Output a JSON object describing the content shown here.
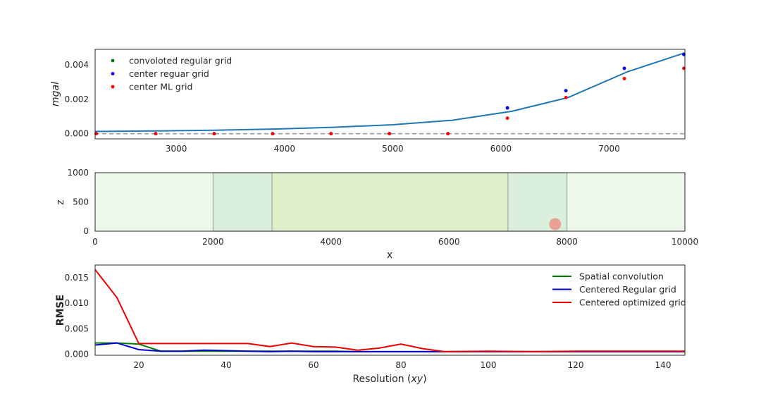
{
  "chart_data": [
    {
      "type": "line",
      "ylabel": "mgal",
      "xlim": [
        2250,
        7700
      ],
      "ylim": [
        -0.0003,
        0.0049
      ],
      "xticks": [
        3000,
        4000,
        5000,
        6000,
        7000
      ],
      "yticks": [
        "0.000",
        "0.002",
        "0.004"
      ],
      "ytick_values": [
        0,
        0.002,
        0.004
      ],
      "legend_position": "upper-left",
      "legend": [
        {
          "label": "convoloted regular grid",
          "color": "#008000"
        },
        {
          "label": "center reguar grid",
          "color": "#0000ff"
        },
        {
          "label": "center ML grid",
          "color": "#ff0000"
        }
      ],
      "reference_line": {
        "y": 0,
        "style": "dashed",
        "color": "#999999"
      },
      "true_curve": {
        "color": "#1f77b4",
        "x": [
          2250,
          2800,
          3350,
          3900,
          4450,
          5000,
          5550,
          6100,
          6620,
          7170,
          7700
        ],
        "y": [
          0.00013,
          0.00016,
          0.0002,
          0.00027,
          0.00037,
          0.00052,
          0.00078,
          0.0013,
          0.0021,
          0.0036,
          0.0047
        ]
      },
      "series": [
        {
          "name": "convoloted regular grid",
          "color": "#008000",
          "x": [
            2260,
            2810,
            3350,
            3890,
            4430,
            4970,
            5510,
            6060,
            6600,
            7140,
            7690
          ],
          "y": [
            0,
            0,
            0,
            0,
            0,
            0,
            0,
            0.0015,
            0.0025,
            0.0038,
            0.0046
          ]
        },
        {
          "name": "center reguar grid",
          "color": "#0000ff",
          "x": [
            2260,
            2810,
            3350,
            3890,
            4430,
            4970,
            5510,
            6060,
            6600,
            7140,
            7690
          ],
          "y": [
            0,
            0,
            0,
            0,
            0,
            0,
            0,
            0.0015,
            0.0025,
            0.0038,
            0.0046
          ]
        },
        {
          "name": "center ML grid",
          "color": "#ff0000",
          "x": [
            2260,
            2810,
            3350,
            3890,
            4430,
            4970,
            5510,
            6060,
            6600,
            7140,
            7690
          ],
          "y": [
            0,
            0,
            0,
            0,
            0,
            0,
            0,
            0.0009,
            0.0021,
            0.0032,
            0.0038
          ]
        }
      ]
    },
    {
      "type": "other",
      "xlabel": "x",
      "ylabel": "z",
      "xlim": [
        0,
        10000
      ],
      "ylim": [
        0,
        1000
      ],
      "xticks": [
        0,
        2000,
        4000,
        6000,
        8000,
        10000
      ],
      "yticks": [
        0,
        500,
        1000
      ],
      "regions": [
        {
          "x0": 0,
          "x1": 10000,
          "color": "#edf7ec"
        },
        {
          "x0": 2000,
          "x1": 3000,
          "color": "#dbefdd",
          "border": "#a0aaa0"
        },
        {
          "x0": 7000,
          "x1": 8000,
          "color": "#dbefdd",
          "border": "#a0aaa0"
        },
        {
          "x0": 3000,
          "x1": 7000,
          "color": "#e1f0cb",
          "border": "#a0aaa0"
        }
      ],
      "source": {
        "x": 7800,
        "z": 120,
        "color": "#e8a195"
      }
    },
    {
      "type": "line",
      "xlabel_prefix": "Resolution (",
      "xlabel_italic": "xy",
      "xlabel_suffix": ")",
      "ylabel": "RMSE",
      "xlim": [
        10,
        145
      ],
      "ylim": [
        -0.0002,
        0.0175
      ],
      "xticks": [
        20,
        40,
        60,
        80,
        100,
        120,
        140
      ],
      "yticks": [
        "0.000",
        "0.005",
        "0.010",
        "0.015"
      ],
      "ytick_values": [
        0,
        0.005,
        0.01,
        0.015
      ],
      "legend_position": "upper-right",
      "x": [
        10,
        15,
        20,
        25,
        30,
        35,
        40,
        45,
        50,
        55,
        60,
        65,
        70,
        75,
        80,
        85,
        90,
        100,
        110,
        120,
        130,
        140,
        145
      ],
      "series": [
        {
          "name": "Spatial convolution",
          "color": "#008000",
          "values": [
            0.0022,
            0.0022,
            0.002,
            0.0006,
            0.0006,
            0.0006,
            0.0006,
            0.0006,
            0.0006,
            0.0006,
            0.0006,
            0.0006,
            0.0005,
            0.0005,
            0.0005,
            0.0005,
            0.0005,
            0.0005,
            0.0005,
            0.0005,
            0.0005,
            0.0005,
            0.0005
          ]
        },
        {
          "name": "Centered Regular grid",
          "color": "#0000cc",
          "values": [
            0.0018,
            0.0022,
            0.0009,
            0.0006,
            0.0006,
            0.0008,
            0.0007,
            0.0006,
            0.0005,
            0.0006,
            0.0005,
            0.0005,
            0.0005,
            0.0005,
            0.0005,
            0.0005,
            0.0005,
            0.0005,
            0.0005,
            0.0005,
            0.0005,
            0.0005,
            0.0005
          ]
        },
        {
          "name": "Centered optimized grid",
          "color": "#ee0000",
          "values": [
            0.0166,
            0.0111,
            0.0021,
            0.0021,
            0.0021,
            0.0021,
            0.0021,
            0.0021,
            0.0015,
            0.0022,
            0.0015,
            0.0014,
            0.0008,
            0.0012,
            0.002,
            0.0011,
            0.0005,
            0.0006,
            0.0005,
            0.0006,
            0.0006,
            0.0006,
            0.0006
          ]
        }
      ]
    }
  ]
}
